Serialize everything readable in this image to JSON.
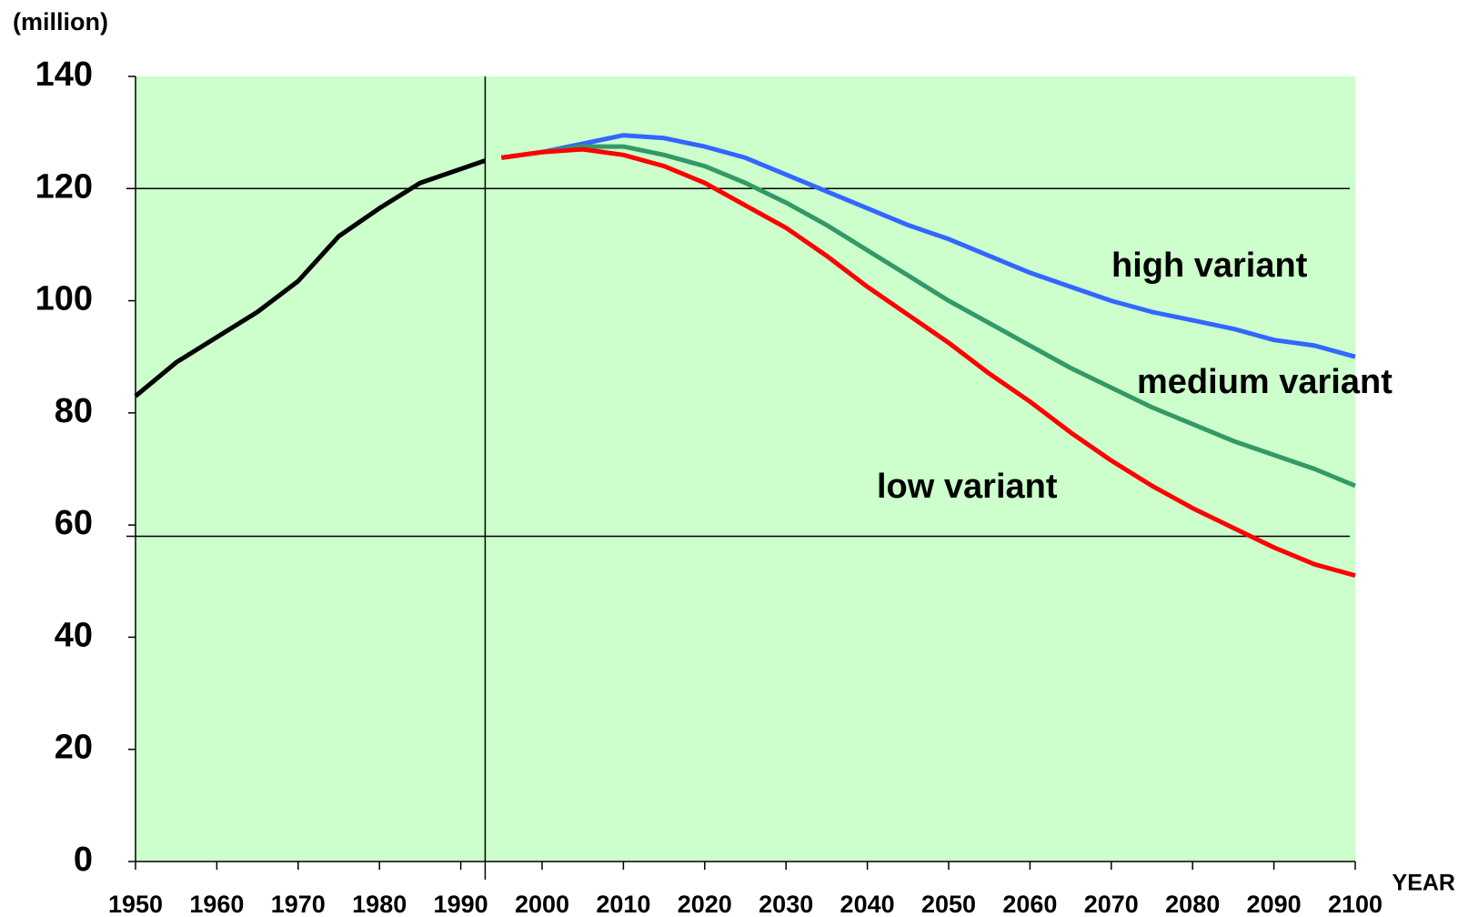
{
  "chart_data": {
    "type": "line",
    "y_axis_label": "(million)",
    "x_axis_label": "YEAR",
    "xlim": [
      1950,
      2100
    ],
    "ylim": [
      0,
      140
    ],
    "xticks": [
      1950,
      1960,
      1970,
      1980,
      1990,
      2000,
      2010,
      2020,
      2030,
      2040,
      2050,
      2060,
      2070,
      2080,
      2090,
      2100
    ],
    "yticks": [
      0,
      20,
      40,
      60,
      80,
      100,
      120,
      140
    ],
    "background": "#ccffcc",
    "reference_hlines": [
      120,
      58
    ],
    "reference_vline": 1993,
    "series": [
      {
        "color": "#000000",
        "x": [
          1950,
          1955,
          1960,
          1965,
          1970,
          1975,
          1980,
          1985,
          1990,
          1993
        ],
        "values": [
          83,
          89,
          93.5,
          98,
          103.5,
          111.5,
          116.5,
          121,
          123.5,
          125
        ]
      },
      {
        "name": "high variant",
        "color": "#3366ff",
        "x": [
          1995,
          2000,
          2005,
          2010,
          2015,
          2020,
          2025,
          2030,
          2035,
          2040,
          2045,
          2050,
          2055,
          2060,
          2065,
          2070,
          2075,
          2080,
          2085,
          2090,
          2095,
          2100
        ],
        "values": [
          125.5,
          126.5,
          128,
          129.5,
          129,
          127.5,
          125.5,
          122.5,
          119.5,
          116.5,
          113.5,
          111,
          108,
          105,
          102.5,
          100,
          98,
          96.5,
          95,
          93,
          92,
          90
        ]
      },
      {
        "name": "medium variant",
        "color": "#339966",
        "x": [
          1995,
          2000,
          2005,
          2010,
          2015,
          2020,
          2025,
          2030,
          2035,
          2040,
          2045,
          2050,
          2055,
          2060,
          2065,
          2070,
          2075,
          2080,
          2085,
          2090,
          2095,
          2100
        ],
        "values": [
          125.5,
          126.5,
          127.5,
          127.5,
          126,
          124,
          121,
          117.5,
          113.5,
          109,
          104.5,
          100,
          96,
          92,
          88,
          84.5,
          81,
          78,
          75,
          72.5,
          70,
          67
        ]
      },
      {
        "name": "low variant",
        "color": "#ff0000",
        "x": [
          1995,
          2000,
          2005,
          2010,
          2015,
          2020,
          2025,
          2030,
          2035,
          2040,
          2045,
          2050,
          2055,
          2060,
          2065,
          2070,
          2075,
          2080,
          2085,
          2090,
          2095,
          2100
        ],
        "values": [
          125.5,
          126.5,
          127,
          126,
          124,
          121,
          117,
          113,
          108,
          102.5,
          97.5,
          92.5,
          87,
          82,
          76.5,
          71.5,
          67,
          63,
          59.5,
          56,
          53,
          51
        ]
      }
    ]
  }
}
